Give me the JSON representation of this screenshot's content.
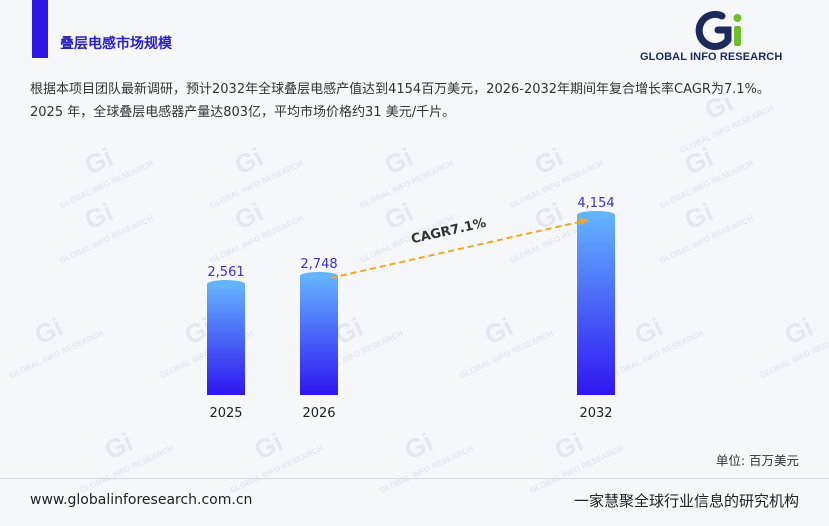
{
  "header": {
    "section_title": "叠层电感市场规模",
    "logo_text": "GLOBAL INFO RESEARCH"
  },
  "description": "根据本项目团队最新调研，预计2032年全球叠层电感产值达到4154百万美元，2026-2032年期间年复合增长率CAGR为7.1%。 2025 年，全球叠层电感器产量达803亿，平均市场价格约31 美元/千片。",
  "chart_data": {
    "type": "bar",
    "categories": [
      "2025",
      "2026",
      "2032"
    ],
    "values": [
      2561,
      2748,
      4154
    ],
    "value_labels": [
      "2,561",
      "2,748",
      "4,154"
    ],
    "annotation": "CAGR7.1%",
    "unit": "单位: 百万美元",
    "colors": {
      "bar_top": "#63b3ff",
      "bar_bottom": "#2f16f0",
      "label": "#3a2fd0",
      "arrow": "#f5a623"
    }
  },
  "footer": {
    "website": "www.globalinforesearch.com.cn",
    "slogan": "一家慧聚全球行业信息的研究机构"
  },
  "colors": {
    "accent": "#2f16e6",
    "background": "#f6f7fb"
  }
}
